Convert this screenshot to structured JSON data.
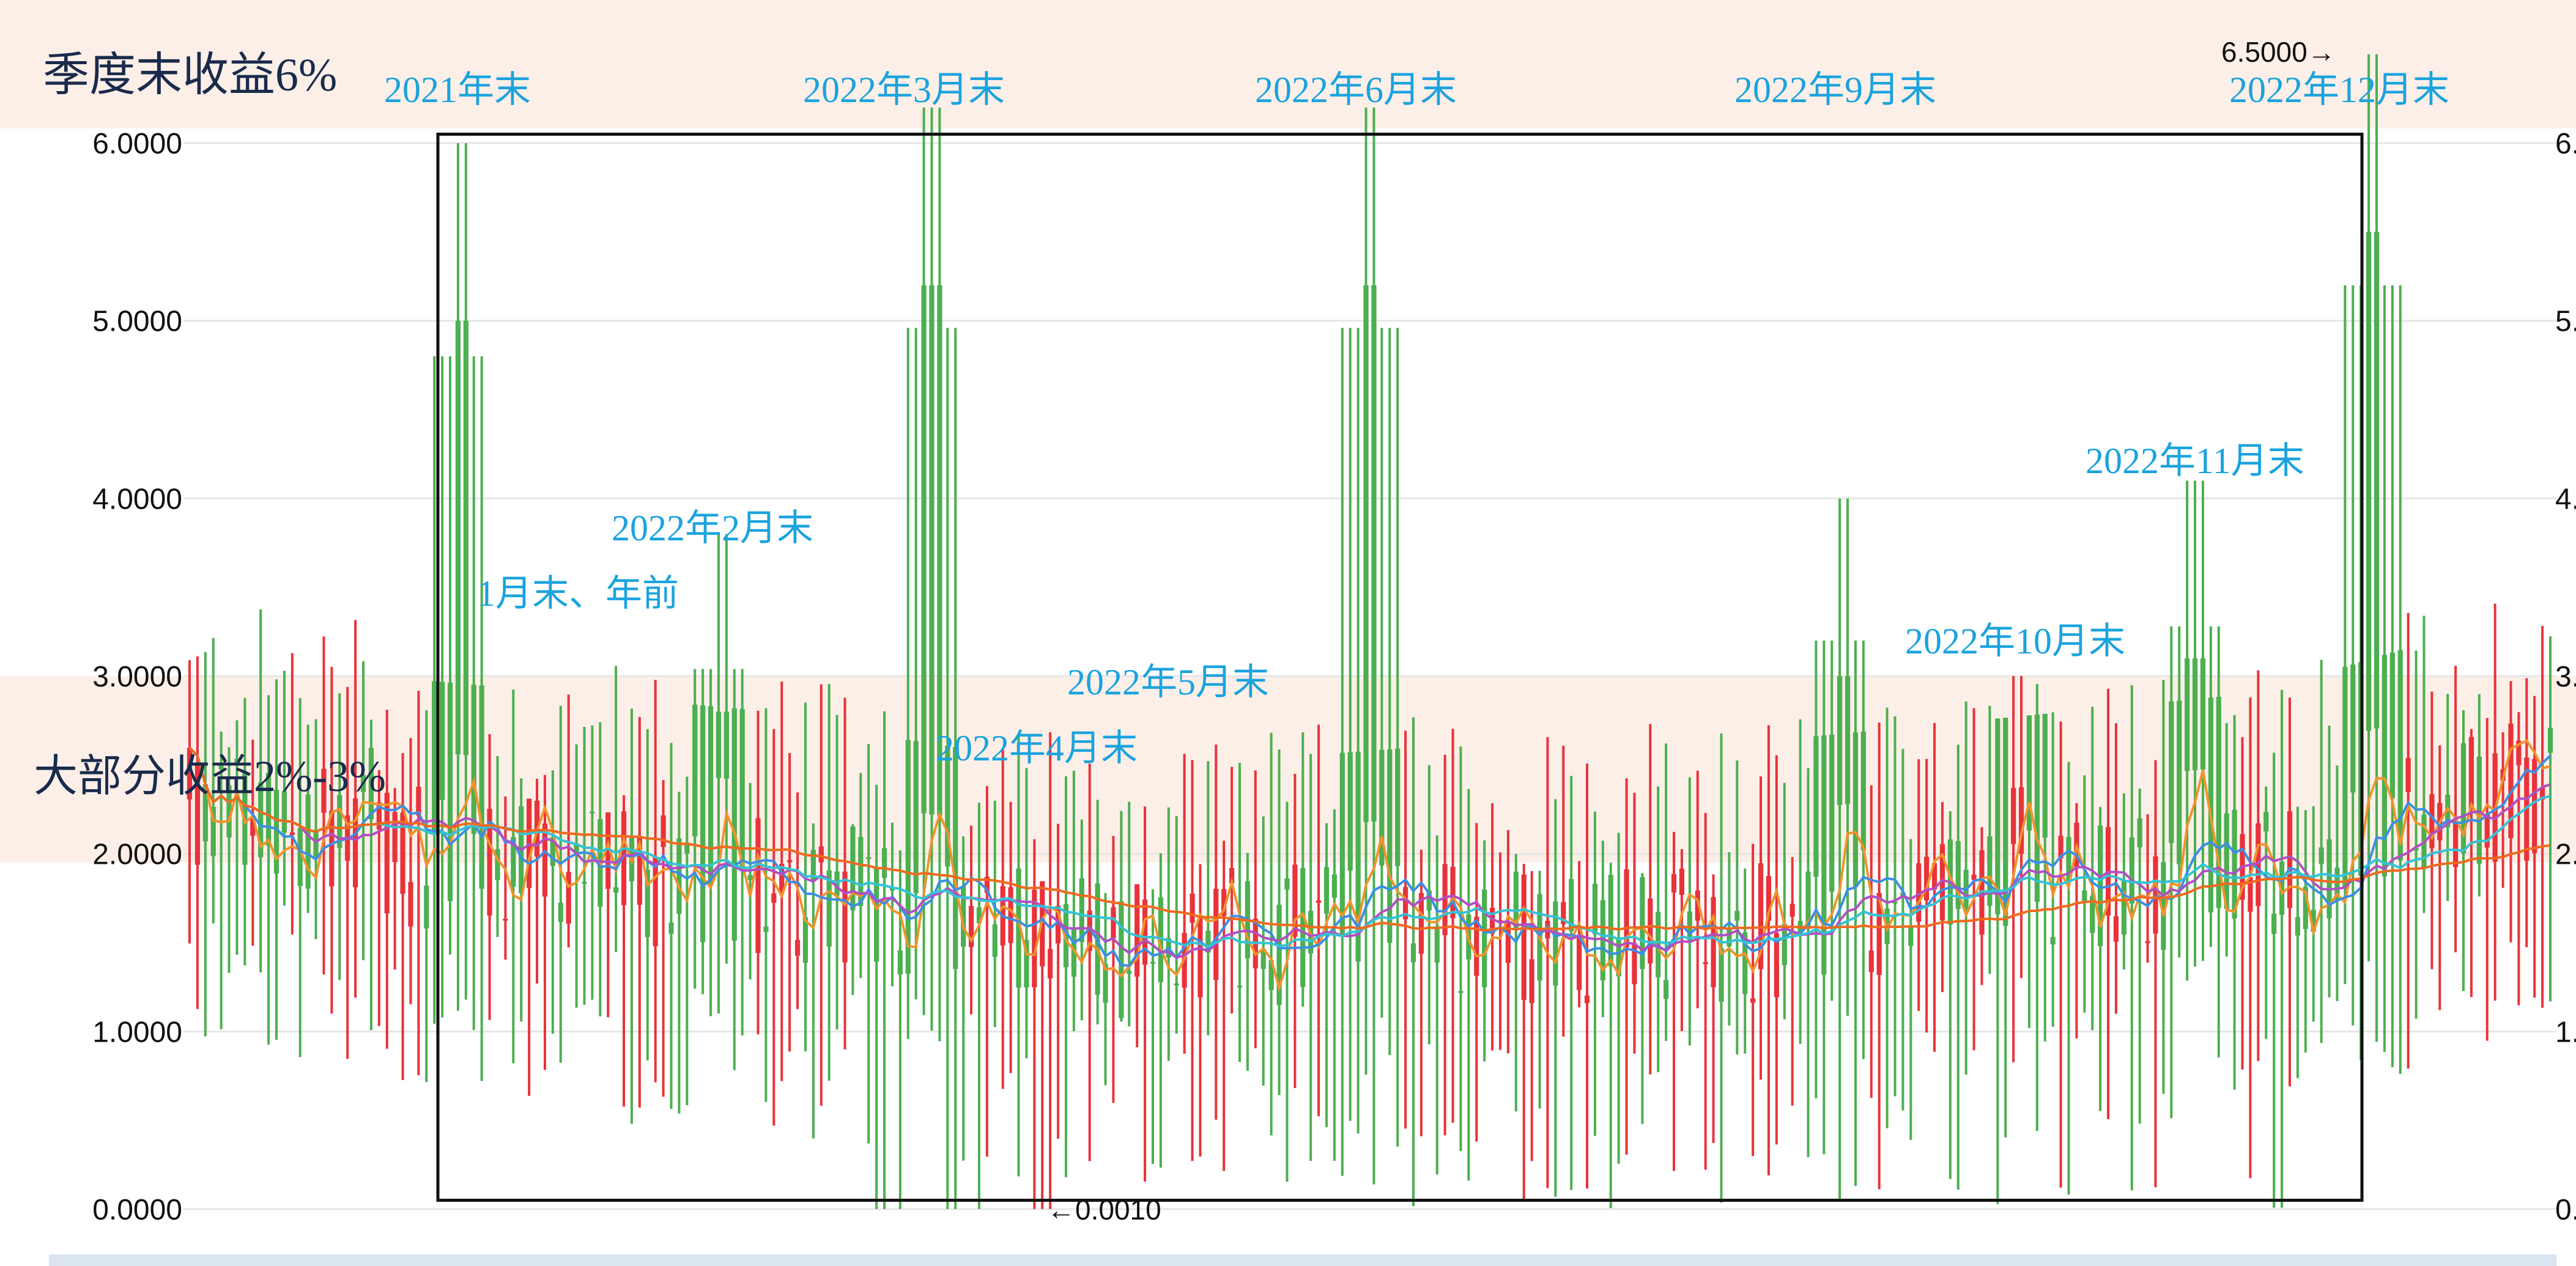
{
  "bands": {
    "top_label": "季度末收益6%",
    "mid_label": "大部分收益2%-3%",
    "colors": {
      "band": "#fcefe8",
      "label": "#1a2b4c"
    }
  },
  "annotations": [
    {
      "key": "y2021_end",
      "text": "2021年末"
    },
    {
      "key": "m2022_01",
      "text": "1月末、年前"
    },
    {
      "key": "m2022_02",
      "text": "2022年2月末"
    },
    {
      "key": "m2022_03",
      "text": "2022年3月末"
    },
    {
      "key": "m2022_04",
      "text": "2022年4月末"
    },
    {
      "key": "m2022_05",
      "text": "2022年5月末"
    },
    {
      "key": "m2022_06",
      "text": "2022年6月末"
    },
    {
      "key": "m2022_09",
      "text": "2022年9月末"
    },
    {
      "key": "m2022_10",
      "text": "2022年10月末"
    },
    {
      "key": "m2022_11",
      "text": "2022年11月末"
    },
    {
      "key": "m2022_12",
      "text": "2022年12月末"
    }
  ],
  "markers": {
    "max_label": "6.5000→",
    "min_label": "←0.0010"
  },
  "chart_data": {
    "type": "candlestick",
    "y_axis": {
      "ylim": [
        0,
        6.1
      ],
      "ticks": [
        0,
        1,
        2,
        3,
        4,
        5,
        6
      ],
      "tick_labels": [
        "0.0000",
        "1.0000",
        "2.0000",
        "3.0000",
        "4.0000",
        "5.0000",
        "6.0000"
      ]
    },
    "grid": true,
    "colors": {
      "up": "#e8333a",
      "down": "#4caf50",
      "box": "#111111",
      "grid": "#e6e6e6"
    },
    "highest": 6.5,
    "lowest": 0.001,
    "candle_count": 300,
    "period_spikes": [
      {
        "label": "2021年末",
        "position": 0.115,
        "high": 6.0
      },
      {
        "label": "2022年2月末",
        "position": 0.225,
        "high": 3.8
      },
      {
        "label": "2022年3月末",
        "position": 0.315,
        "high": 6.2
      },
      {
        "label": "2022年6月末",
        "position": 0.5,
        "high": 6.2
      },
      {
        "label": "2022年9月末",
        "position": 0.7,
        "high": 4.0
      },
      {
        "label": "2022年10月末",
        "position": 0.775,
        "high": 3.0
      },
      {
        "label": "2022年11月末",
        "position": 0.85,
        "high": 4.1
      },
      {
        "label": "2022年12月末",
        "position": 0.925,
        "high": 6.5
      }
    ],
    "moving_averages": [
      {
        "color": "#f0932b"
      },
      {
        "color": "#3b8fe5"
      },
      {
        "color": "#b24fc4"
      },
      {
        "color": "#34c3d6"
      },
      {
        "color": "#f06a1e"
      }
    ]
  }
}
